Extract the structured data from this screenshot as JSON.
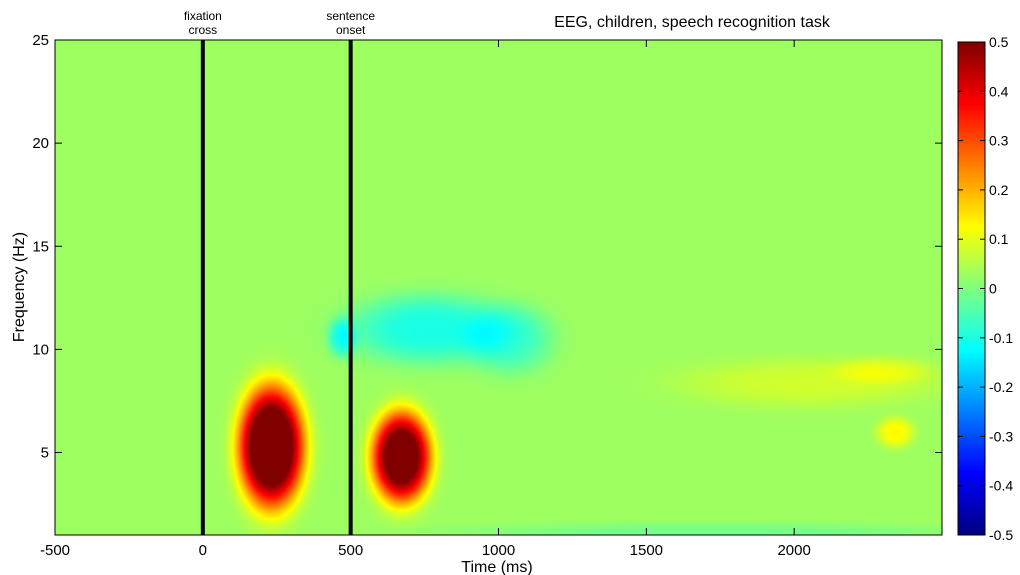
{
  "chart_data": {
    "type": "heatmap",
    "title": "EEG, children, speech recognition task",
    "xlabel": "Time (ms)",
    "ylabel": "Frequency (Hz)",
    "xlim": [
      -500,
      2500
    ],
    "ylim": [
      1,
      25
    ],
    "xticks": [
      -500,
      0,
      500,
      1000,
      1500,
      2000
    ],
    "xtick_labels": [
      "-500",
      "0",
      "500",
      "1000",
      "1500",
      "2000"
    ],
    "yticks": [
      5,
      10,
      15,
      20,
      25
    ],
    "ytick_labels": [
      "5",
      "10",
      "15",
      "20",
      "25"
    ],
    "background_value": 0.03,
    "events": [
      {
        "x": 0,
        "label_line1": "fixation",
        "label_line2": "cross"
      },
      {
        "x": 500,
        "label_line1": "sentence",
        "label_line2": "onset"
      }
    ],
    "colorbar": {
      "vmin": -0.5,
      "vmax": 0.5,
      "ticks": [
        0.5,
        0.4,
        0.3,
        0.2,
        0.1,
        0,
        -0.1,
        -0.2,
        -0.3,
        -0.4,
        -0.5
      ],
      "tick_labels": [
        "0.5",
        "0.4",
        "0.3",
        "0.2",
        "0.1",
        "0",
        "-0.1",
        "-0.2",
        "-0.3",
        "-0.4",
        "-0.5"
      ],
      "colormap": "jet"
    },
    "regions": [
      {
        "name": "early-theta-burst",
        "t_center": 230,
        "f_center": 5.3,
        "t_spread": 105,
        "f_spread": 2.8,
        "peak": 0.6
      },
      {
        "name": "post-onset-theta-burst",
        "t_center": 670,
        "f_center": 4.8,
        "t_spread": 95,
        "f_spread": 2.1,
        "peak": 0.55
      },
      {
        "name": "alpha-suppression-early",
        "t_center": 760,
        "f_center": 11,
        "t_spread": 260,
        "f_spread": 1.6,
        "peak": -0.13
      },
      {
        "name": "alpha-suppression-peak-1",
        "t_center": 470,
        "f_center": 10.6,
        "t_spread": 45,
        "f_spread": 0.9,
        "peak": -0.12
      },
      {
        "name": "alpha-suppression-late",
        "t_center": 1040,
        "f_center": 10.5,
        "t_spread": 140,
        "f_spread": 1.6,
        "peak": -0.09
      },
      {
        "name": "late-alpha-increase",
        "t_center": 2050,
        "f_center": 8.4,
        "t_spread": 420,
        "f_spread": 1.1,
        "peak": 0.05
      },
      {
        "name": "late-alpha-increase-2",
        "t_center": 2300,
        "f_center": 9.0,
        "t_spread": 150,
        "f_spread": 0.6,
        "peak": 0.05
      },
      {
        "name": "late-theta-spot",
        "t_center": 2340,
        "f_center": 6.0,
        "t_spread": 60,
        "f_spread": 0.7,
        "peak": 0.1
      },
      {
        "name": "low-freq-band",
        "t_center": 1700,
        "f_center": 1.2,
        "t_spread": 800,
        "f_spread": 0.4,
        "peak": -0.04
      }
    ]
  }
}
